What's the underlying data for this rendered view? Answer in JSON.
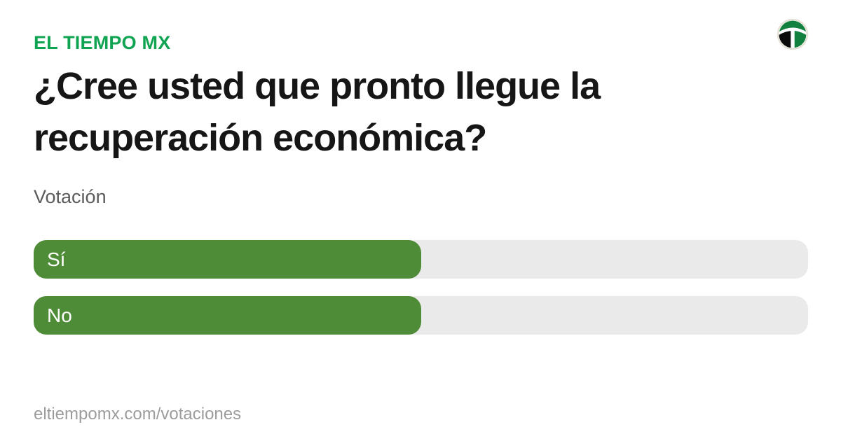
{
  "brand": {
    "name": "EL TIEMPO MX",
    "color": "#10A452"
  },
  "logo": {
    "icon": "el-tiempo-circle-t-logo",
    "ring_color": "#E5E1D6",
    "black": "#0B0B0B",
    "green": "#12813F"
  },
  "title": "¿Cree usted que pronto llegue la recuperación económica?",
  "section_label": "Votación",
  "poll": {
    "fill_color": "#4F8C38",
    "track_color": "#EAEAEA",
    "options": [
      {
        "label": "Sí",
        "percent": 50
      },
      {
        "label": "No",
        "percent": 50
      }
    ]
  },
  "footer": {
    "url": "eltiempomx.com/votaciones"
  },
  "chart_data": {
    "type": "bar",
    "orientation": "horizontal",
    "title": "¿Cree usted que pronto llegue la recuperación económica?",
    "subtitle": "Votación",
    "categories": [
      "Sí",
      "No"
    ],
    "values": [
      50,
      50
    ],
    "unit": "percent",
    "xlim": [
      0,
      100
    ],
    "grid": false,
    "legend": false,
    "bar_color": "#4F8C38",
    "track_color": "#EAEAEA"
  }
}
